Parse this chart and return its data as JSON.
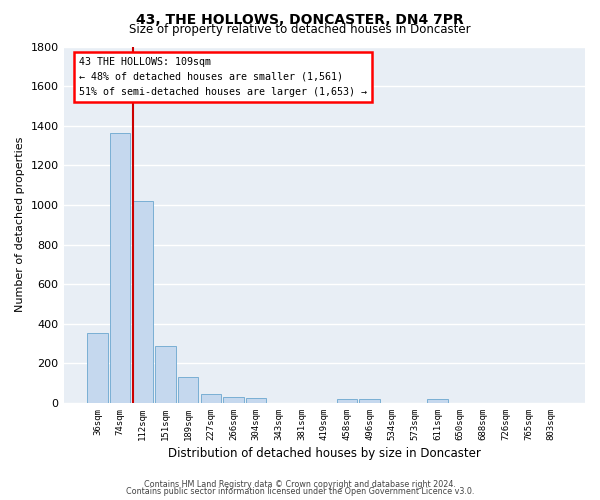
{
  "title": "43, THE HOLLOWS, DONCASTER, DN4 7PR",
  "subtitle": "Size of property relative to detached houses in Doncaster",
  "xlabel": "Distribution of detached houses by size in Doncaster",
  "ylabel": "Number of detached properties",
  "bar_labels": [
    "36sqm",
    "74sqm",
    "112sqm",
    "151sqm",
    "189sqm",
    "227sqm",
    "266sqm",
    "304sqm",
    "343sqm",
    "381sqm",
    "419sqm",
    "458sqm",
    "496sqm",
    "534sqm",
    "573sqm",
    "611sqm",
    "650sqm",
    "688sqm",
    "726sqm",
    "765sqm",
    "803sqm"
  ],
  "bar_values": [
    355,
    1365,
    1020,
    290,
    130,
    45,
    30,
    25,
    0,
    0,
    0,
    20,
    20,
    0,
    0,
    20,
    0,
    0,
    0,
    0,
    0
  ],
  "bar_color": "#c5d8ee",
  "bar_edgecolor": "#7aafd4",
  "redline_label": "43 THE HOLLOWS: 109sqm",
  "annotation_line1": "← 48% of detached houses are smaller (1,561)",
  "annotation_line2": "51% of semi-detached houses are larger (1,653) →",
  "ylim": [
    0,
    1800
  ],
  "yticks": [
    0,
    200,
    400,
    600,
    800,
    1000,
    1200,
    1400,
    1600,
    1800
  ],
  "vline_color": "#cc0000",
  "background_color": "#e8eef5",
  "footer_line1": "Contains HM Land Registry data © Crown copyright and database right 2024.",
  "footer_line2": "Contains public sector information licensed under the Open Government Licence v3.0."
}
